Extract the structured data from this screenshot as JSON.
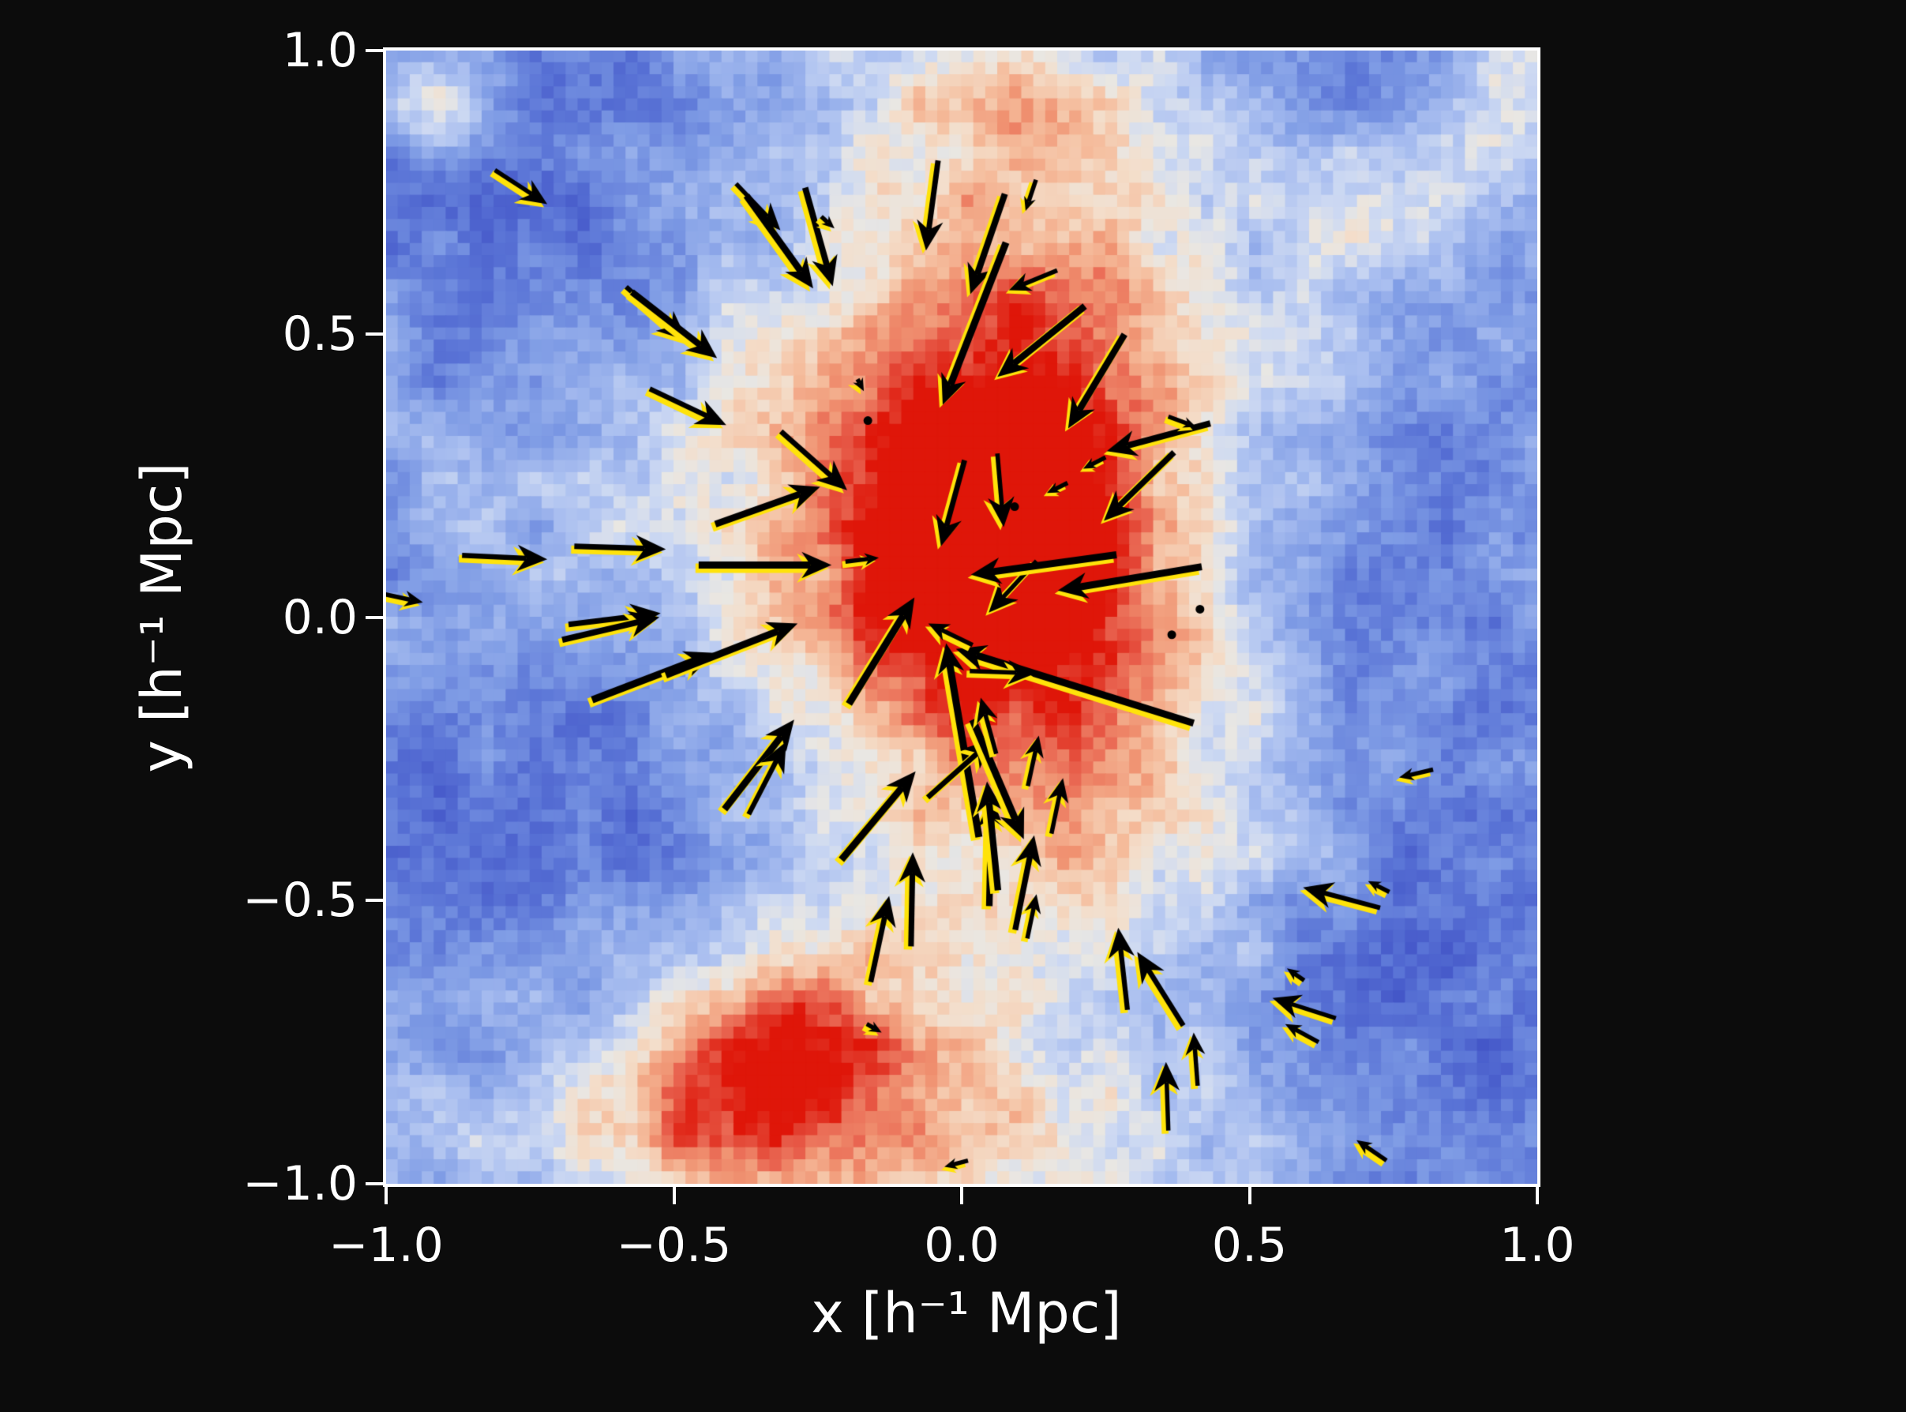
{
  "figure": {
    "background_color": "#0c0c0c",
    "spine_color": "#ffffff",
    "text_color": "#ffffff"
  },
  "chart_data": {
    "type": "heatmap",
    "title": "",
    "xlabel": "x [h⁻¹ Mpc]",
    "ylabel": "y [h⁻¹ Mpc]",
    "xlim": [
      -1.0,
      1.0
    ],
    "ylim": [
      -1.0,
      1.0
    ],
    "grid": false,
    "legend": "none",
    "xticks": {
      "values": [
        -1.0,
        -0.5,
        0.0,
        0.5,
        1.0
      ],
      "labels": [
        "−1.0",
        "−0.5",
        "0.0",
        "0.5",
        "1.0"
      ]
    },
    "yticks": {
      "values": [
        1.0,
        0.5,
        0.0,
        -0.5,
        -1.0
      ],
      "labels": [
        "1.0",
        "0.5",
        "0.0",
        "−0.5",
        "−1.0"
      ]
    },
    "colormap": {
      "name": "blue-white-red diverging (coolwarm-like)",
      "stops": [
        [
          0.0,
          "#3b4cc0"
        ],
        [
          0.1,
          "#4558c9"
        ],
        [
          0.2,
          "#5a74d6"
        ],
        [
          0.32,
          "#7f9ce5"
        ],
        [
          0.44,
          "#aabff0"
        ],
        [
          0.52,
          "#cdd9f2"
        ],
        [
          0.58,
          "#e9e7e3"
        ],
        [
          0.64,
          "#f4ddc9"
        ],
        [
          0.72,
          "#f5bd9d"
        ],
        [
          0.8,
          "#f09372"
        ],
        [
          0.88,
          "#e96450"
        ],
        [
          0.94,
          "#e23c2c"
        ],
        [
          1.0,
          "#df1609"
        ]
      ]
    },
    "density_field": {
      "description": "projected density map of a simulated galaxy cluster, pixelated grid",
      "grid_nx": 96,
      "grid_ny": 94,
      "base_level": 0.3,
      "noise": {
        "seed": 20,
        "coarse_cells": 24,
        "coarse_amp": 0.095,
        "fine_amp": 0.055
      },
      "blobs": [
        {
          "x": 0.03,
          "y": 0.14,
          "amp": 0.55,
          "sx": 0.17,
          "sy": 0.17
        },
        {
          "x": 0.08,
          "y": 0.03,
          "amp": 0.28,
          "sx": 0.13,
          "sy": 0.13
        },
        {
          "x": 0.05,
          "y": 0.02,
          "amp": 0.46,
          "sx": 0.55,
          "sy": 0.5
        },
        {
          "x": 0.1,
          "y": 0.6,
          "amp": 0.26,
          "sx": 0.22,
          "sy": 0.3
        },
        {
          "x": 0.03,
          "y": 0.93,
          "amp": 0.18,
          "sx": 0.2,
          "sy": 0.1
        },
        {
          "x": -0.25,
          "y": -0.92,
          "amp": 0.34,
          "sx": 0.45,
          "sy": 0.16
        },
        {
          "x": -0.42,
          "y": -0.84,
          "amp": 0.26,
          "sx": 0.18,
          "sy": 0.13
        },
        {
          "x": -0.26,
          "y": -0.74,
          "amp": 0.27,
          "sx": 0.15,
          "sy": 0.13
        },
        {
          "x": 0.3,
          "y": -0.3,
          "amp": 0.2,
          "sx": 0.25,
          "sy": 0.22
        },
        {
          "x": 0.38,
          "y": 0.42,
          "amp": 0.12,
          "sx": 0.3,
          "sy": 0.25
        },
        {
          "x": -0.9,
          "y": 0.9,
          "amp": 0.3,
          "sx": 0.08,
          "sy": 0.07
        },
        {
          "x": 0.72,
          "y": 0.7,
          "amp": 0.28,
          "sx": 0.11,
          "sy": 0.09
        },
        {
          "x": 0.97,
          "y": 0.9,
          "amp": 0.25,
          "sx": 0.09,
          "sy": 0.11
        },
        {
          "x": 0.63,
          "y": 0.05,
          "amp": -0.26,
          "sx": 0.3,
          "sy": 0.45
        },
        {
          "x": -0.75,
          "y": 0.74,
          "amp": -0.16,
          "sx": 0.28,
          "sy": 0.22
        },
        {
          "x": -0.73,
          "y": -0.35,
          "amp": -0.18,
          "sx": 0.3,
          "sy": 0.28
        },
        {
          "x": 0.86,
          "y": -0.6,
          "amp": -0.12,
          "sx": 0.25,
          "sy": 0.28
        },
        {
          "x": -0.5,
          "y": -0.25,
          "amp": -0.1,
          "sx": 0.25,
          "sy": 0.25
        }
      ]
    },
    "quiver": {
      "face_color": "#000000",
      "edge_color": "#ffe30a",
      "arrows": [
        [
          -0.811,
          0.789,
          -0.72,
          0.729
        ],
        [
          -0.392,
          0.765,
          -0.315,
          0.683
        ],
        [
          -0.374,
          0.744,
          -0.258,
          0.58
        ],
        [
          -0.272,
          0.758,
          -0.224,
          0.584
        ],
        [
          -0.244,
          0.707,
          -0.221,
          0.686
        ],
        [
          -0.041,
          0.806,
          -0.062,
          0.647
        ],
        [
          0.075,
          0.747,
          0.015,
          0.57
        ],
        [
          0.129,
          0.772,
          0.111,
          0.717
        ],
        [
          0.077,
          0.661,
          -0.033,
          0.375
        ],
        [
          0.166,
          0.612,
          0.082,
          0.577
        ],
        [
          0.214,
          0.549,
          0.062,
          0.424
        ],
        [
          0.283,
          0.499,
          0.185,
          0.333
        ],
        [
          0.432,
          0.342,
          0.252,
          0.293
        ],
        [
          0.369,
          0.291,
          0.247,
          0.17
        ],
        [
          0.184,
          0.237,
          0.148,
          0.219
        ],
        [
          0.25,
          0.282,
          0.211,
          0.262
        ],
        [
          0.359,
          0.354,
          0.407,
          0.336
        ],
        [
          -0.314,
          0.328,
          -0.199,
          0.224
        ],
        [
          0.005,
          0.277,
          -0.036,
          0.125
        ],
        [
          0.062,
          0.289,
          0.073,
          0.159
        ],
        [
          -1.01,
          0.042,
          -0.936,
          0.026
        ],
        [
          -0.868,
          0.109,
          -0.72,
          0.102
        ],
        [
          -0.673,
          0.125,
          -0.514,
          0.12
        ],
        [
          -0.457,
          0.092,
          -0.226,
          0.092
        ],
        [
          -0.428,
          0.164,
          -0.246,
          0.23
        ],
        [
          -0.683,
          -0.013,
          -0.523,
          0.007
        ],
        [
          -0.694,
          -0.04,
          -0.525,
          0.0
        ],
        [
          -0.642,
          -0.146,
          -0.429,
          -0.063
        ],
        [
          -0.514,
          -0.102,
          -0.285,
          -0.011
        ],
        [
          -0.202,
          0.098,
          -0.144,
          0.105
        ],
        [
          0.13,
          0.099,
          0.047,
          0.008
        ],
        [
          0.269,
          0.11,
          0.016,
          0.075
        ],
        [
          0.417,
          0.089,
          0.167,
          0.047
        ],
        [
          0.403,
          -0.187,
          -0.01,
          -0.056
        ],
        [
          0.014,
          -0.095,
          0.129,
          -0.099
        ],
        [
          -0.196,
          -0.153,
          -0.082,
          0.035
        ],
        [
          0.019,
          -0.049,
          -0.058,
          -0.011
        ],
        [
          0.048,
          -0.51,
          0.052,
          -0.318
        ],
        [
          0.03,
          -0.388,
          -0.027,
          -0.046
        ],
        [
          0.063,
          -0.482,
          0.044,
          -0.29
        ],
        [
          -0.059,
          -0.318,
          0.055,
          -0.215
        ],
        [
          0.019,
          -0.181,
          0.108,
          -0.392
        ],
        [
          0.156,
          -0.382,
          0.176,
          -0.284
        ],
        [
          0.06,
          -0.241,
          0.033,
          -0.142
        ],
        [
          -0.412,
          -0.339,
          -0.291,
          -0.181
        ],
        [
          -0.37,
          -0.348,
          -0.305,
          -0.22
        ],
        [
          -0.209,
          -0.428,
          -0.08,
          -0.272
        ],
        [
          0.115,
          -0.298,
          0.134,
          -0.209
        ],
        [
          -0.088,
          -0.581,
          -0.085,
          -0.415
        ],
        [
          -0.158,
          -0.644,
          -0.126,
          -0.492
        ],
        [
          0.114,
          -0.567,
          0.13,
          -0.489
        ],
        [
          0.093,
          -0.552,
          0.126,
          -0.385
        ],
        [
          0.288,
          -0.693,
          0.272,
          -0.548
        ],
        [
          0.385,
          -0.721,
          0.305,
          -0.591
        ],
        [
          -0.165,
          -0.718,
          -0.139,
          -0.733
        ],
        [
          0.011,
          -0.959,
          -0.03,
          -0.97
        ],
        [
          0.819,
          -0.269,
          0.76,
          -0.283
        ],
        [
          0.727,
          -0.513,
          0.593,
          -0.477
        ],
        [
          0.743,
          -0.485,
          0.706,
          -0.466
        ],
        [
          0.595,
          -0.641,
          0.565,
          -0.62
        ],
        [
          0.65,
          -0.708,
          0.54,
          -0.672
        ],
        [
          0.62,
          -0.75,
          0.562,
          -0.718
        ],
        [
          0.41,
          -0.827,
          0.403,
          -0.733
        ],
        [
          0.359,
          -0.906,
          0.355,
          -0.785
        ],
        [
          0.738,
          -0.959,
          0.686,
          -0.923
        ],
        [
          -0.181,
          0.42,
          -0.17,
          0.399
        ],
        [
          -0.583,
          0.583,
          -0.477,
          0.488
        ],
        [
          -0.573,
          0.574,
          -0.425,
          0.457
        ],
        [
          -0.542,
          0.403,
          -0.409,
          0.339
        ]
      ],
      "dots": [
        [
          0.092,
          0.195
        ],
        [
          0.414,
          0.014
        ],
        [
          0.365,
          -0.031
        ],
        [
          -0.163,
          0.347
        ]
      ]
    }
  }
}
